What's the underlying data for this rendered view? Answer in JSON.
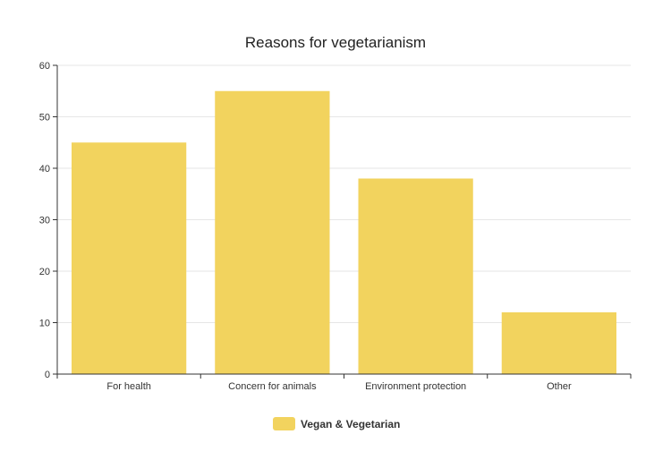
{
  "chart_data": {
    "type": "bar",
    "title": "Reasons for vegetarianism",
    "xlabel": "",
    "ylabel": "",
    "categories": [
      "For health",
      "Concern for animals",
      "Environment protection",
      "Other"
    ],
    "series": [
      {
        "name": "Vegan & Vegetarian",
        "values": [
          45,
          55,
          38,
          12
        ],
        "color": "#f2d35e"
      }
    ],
    "ylim": [
      0,
      60
    ],
    "yticks": [
      0,
      10,
      20,
      30,
      40,
      50,
      60
    ],
    "grid": true,
    "legend": "bottom"
  }
}
